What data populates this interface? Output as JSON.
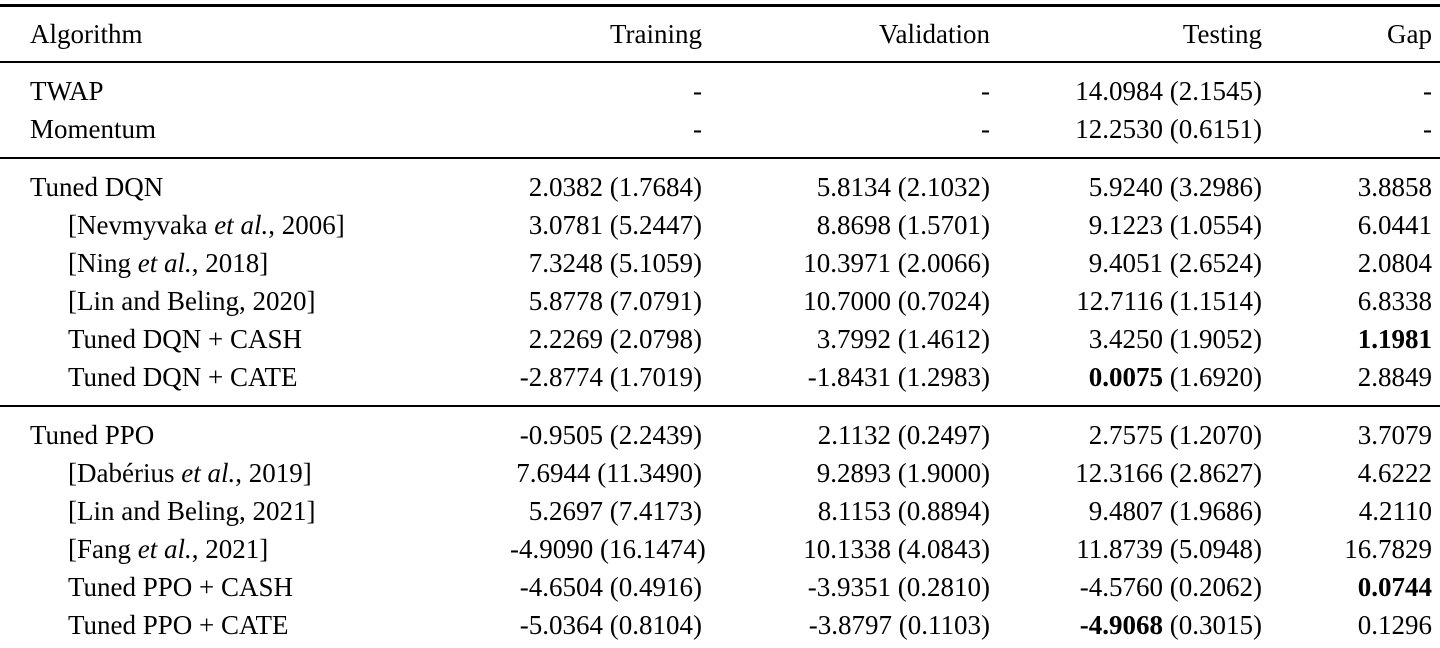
{
  "table": {
    "empty_marker": "-",
    "headers": [
      "Algorithm",
      "Training",
      "Validation",
      "Testing",
      "Gap"
    ],
    "groups": [
      {
        "rows": [
          {
            "indent": false,
            "name": [
              {
                "text": "TWAP"
              }
            ],
            "training": null,
            "validation": null,
            "testing": {
              "mean": "14.0984",
              "std": "(2.1545)"
            },
            "gap": null
          },
          {
            "indent": false,
            "name": [
              {
                "text": "Momentum"
              }
            ],
            "training": null,
            "validation": null,
            "testing": {
              "mean": "12.2530",
              "std": "(0.6151)"
            },
            "gap": null
          }
        ]
      },
      {
        "rows": [
          {
            "indent": false,
            "name": [
              {
                "text": "Tuned DQN"
              }
            ],
            "training": {
              "mean": "2.0382",
              "std": "(1.7684)"
            },
            "validation": {
              "mean": "5.8134",
              "std": "(2.1032)"
            },
            "testing": {
              "mean": "5.9240",
              "std": "(3.2986)"
            },
            "gap": {
              "value": "3.8858"
            }
          },
          {
            "indent": true,
            "name": [
              {
                "text": "[Nevmyvaka "
              },
              {
                "text": "et al.",
                "italic": true
              },
              {
                "text": ", 2006]"
              }
            ],
            "training": {
              "mean": "3.0781",
              "std": "(5.2447)"
            },
            "validation": {
              "mean": "8.8698",
              "std": "(1.5701)"
            },
            "testing": {
              "mean": "9.1223",
              "std": "(1.0554)"
            },
            "gap": {
              "value": "6.0441"
            }
          },
          {
            "indent": true,
            "name": [
              {
                "text": "[Ning "
              },
              {
                "text": "et al.",
                "italic": true
              },
              {
                "text": ", 2018]"
              }
            ],
            "training": {
              "mean": "7.3248",
              "std": "(5.1059)"
            },
            "validation": {
              "mean": "10.3971",
              "std": "(2.0066)"
            },
            "testing": {
              "mean": "9.4051",
              "std": "(2.6524)"
            },
            "gap": {
              "value": "2.0804"
            }
          },
          {
            "indent": true,
            "name": [
              {
                "text": "[Lin and Beling, 2020]"
              }
            ],
            "training": {
              "mean": "5.8778",
              "std": "(7.0791)"
            },
            "validation": {
              "mean": "10.7000",
              "std": "(0.7024)"
            },
            "testing": {
              "mean": "12.7116",
              "std": "(1.1514)"
            },
            "gap": {
              "value": "6.8338"
            }
          },
          {
            "indent": true,
            "name": [
              {
                "text": "Tuned DQN + CASH"
              }
            ],
            "training": {
              "mean": "2.2269",
              "std": "(2.0798)"
            },
            "validation": {
              "mean": "3.7992",
              "std": "(1.4612)"
            },
            "testing": {
              "mean": "3.4250",
              "std": "(1.9052)"
            },
            "gap": {
              "value": "1.1981",
              "bold": true
            }
          },
          {
            "indent": true,
            "name": [
              {
                "text": "Tuned DQN + CATE"
              }
            ],
            "training": {
              "mean": "-2.8774",
              "std": "(1.7019)"
            },
            "validation": {
              "mean": "-1.8431",
              "std": "(1.2983)"
            },
            "testing": {
              "mean": "0.0075",
              "std": "(1.6920)",
              "bold_mean": true
            },
            "gap": {
              "value": "2.8849"
            }
          }
        ]
      },
      {
        "rows": [
          {
            "indent": false,
            "name": [
              {
                "text": "Tuned PPO"
              }
            ],
            "training": {
              "mean": "-0.9505",
              "std": "(2.2439)"
            },
            "validation": {
              "mean": "2.1132",
              "std": "(0.2497)"
            },
            "testing": {
              "mean": "2.7575",
              "std": "(1.2070)"
            },
            "gap": {
              "value": "3.7079"
            }
          },
          {
            "indent": true,
            "name": [
              {
                "text": "[Dabérius "
              },
              {
                "text": "et al.",
                "italic": true
              },
              {
                "text": ", 2019]"
              }
            ],
            "training": {
              "mean": "7.6944",
              "std": "(11.3490)"
            },
            "validation": {
              "mean": "9.2893",
              "std": "(1.9000)"
            },
            "testing": {
              "mean": "12.3166",
              "std": "(2.8627)"
            },
            "gap": {
              "value": "4.6222"
            }
          },
          {
            "indent": true,
            "name": [
              {
                "text": "[Lin and Beling, 2021]"
              }
            ],
            "training": {
              "mean": "5.2697",
              "std": "(7.4173)"
            },
            "validation": {
              "mean": "8.1153",
              "std": "(0.8894)"
            },
            "testing": {
              "mean": "9.4807",
              "std": "(1.9686)"
            },
            "gap": {
              "value": "4.2110"
            }
          },
          {
            "indent": true,
            "name": [
              {
                "text": "[Fang "
              },
              {
                "text": "et al.",
                "italic": true
              },
              {
                "text": ", 2021]"
              }
            ],
            "training": {
              "mean": "-4.9090",
              "std": "(16.1474)"
            },
            "validation": {
              "mean": "10.1338",
              "std": "(4.0843)"
            },
            "testing": {
              "mean": "11.8739",
              "std": "(5.0948)"
            },
            "gap": {
              "value": "16.7829"
            }
          },
          {
            "indent": true,
            "name": [
              {
                "text": "Tuned PPO + CASH"
              }
            ],
            "training": {
              "mean": "-4.6504",
              "std": "(0.4916)"
            },
            "validation": {
              "mean": "-3.9351",
              "std": "(0.2810)"
            },
            "testing": {
              "mean": "-4.5760",
              "std": "(0.2062)"
            },
            "gap": {
              "value": "0.0744",
              "bold": true
            }
          },
          {
            "indent": true,
            "name": [
              {
                "text": "Tuned PPO + CATE"
              }
            ],
            "training": {
              "mean": "-5.0364",
              "std": "(0.8104)"
            },
            "validation": {
              "mean": "-3.8797",
              "std": "(0.1103)"
            },
            "testing": {
              "mean": "-4.9068",
              "std": "(0.3015)",
              "bold_mean": true
            },
            "gap": {
              "value": "0.1296"
            }
          }
        ]
      }
    ]
  }
}
